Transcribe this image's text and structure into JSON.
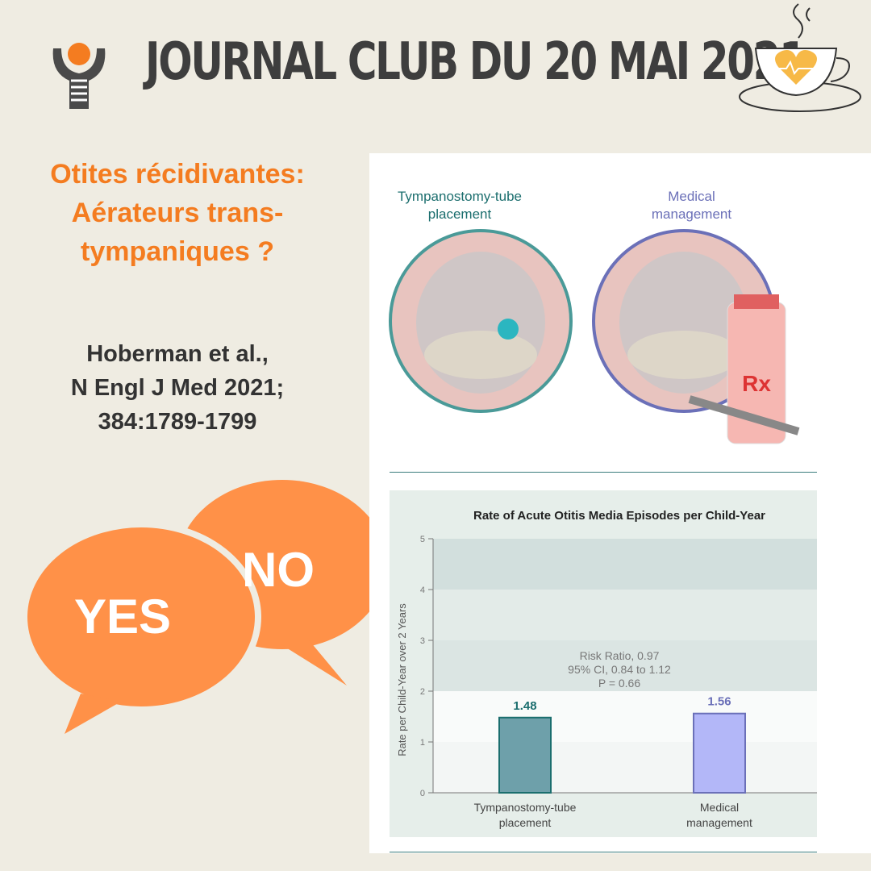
{
  "header": {
    "title": "JOURNAL CLUB  DU 20 MAI 2021"
  },
  "left": {
    "question": [
      "Otites récidivantes:",
      "Aérateurs trans-",
      "tympaniques ?"
    ],
    "reference": [
      "Hoberman  et al.,",
      "N Engl J Med 2021;",
      "384:1789-1799"
    ],
    "bubble_yes": "YES",
    "bubble_no": "NO"
  },
  "illustration": {
    "left_label": "Tympanostomy-tube placement",
    "right_label": "Medical management",
    "bottle_label": "Rx"
  },
  "colors": {
    "orange": "#f47c20",
    "bubble": "#ff9148",
    "teal": "#1b6e6e",
    "lavender": "#6b70b8",
    "bar_teal": "#6ea0aa",
    "bar_lav": "#b3b7f8"
  },
  "chart_data": {
    "type": "bar",
    "title": "Rate of Acute Otitis Media Episodes per Child-Year",
    "ylabel": "Rate per Child-Year over 2 Years",
    "categories": [
      "Tympanostomy-tube placement",
      "Medical management"
    ],
    "category_lines": [
      [
        "Tympanostomy-tube",
        "placement"
      ],
      [
        "Medical",
        "management"
      ]
    ],
    "values": [
      1.48,
      1.56
    ],
    "value_labels": [
      "1.48",
      "1.56"
    ],
    "ylim": [
      0,
      5
    ],
    "yticks": [
      "0",
      "1",
      "2",
      "3",
      "4",
      "5"
    ],
    "annotation": [
      "Risk Ratio, 0.97",
      "95% CI, 0.84 to 1.12",
      "P = 0.66"
    ]
  }
}
